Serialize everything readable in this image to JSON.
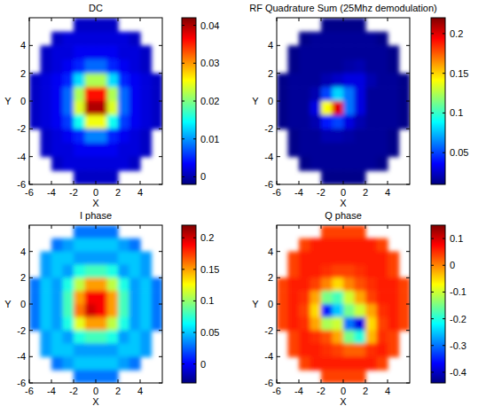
{
  "chart_data": [
    {
      "type": "heatmap",
      "title": "DC",
      "x_label": "X",
      "y_label": "Y",
      "xlim": [
        -6,
        6
      ],
      "ylim": [
        -6,
        6
      ],
      "xticks": [
        -6,
        -4,
        -2,
        0,
        2,
        4
      ],
      "yticks": [
        -6,
        -4,
        -2,
        0,
        2,
        4
      ],
      "x": [
        -5.5,
        -4.5,
        -3.5,
        -2.5,
        -1.5,
        -0.5,
        0.5,
        1.5,
        2.5,
        3.5,
        4.5,
        5.5
      ],
      "y": [
        5.5,
        4.5,
        3.5,
        2.5,
        1.5,
        0.5,
        -0.5,
        -1.5,
        -2.5,
        -3.5,
        -4.5,
        -5.5
      ],
      "values": [
        [
          null,
          null,
          null,
          null,
          0.001,
          0.001,
          0.001,
          0.001,
          null,
          null,
          null,
          null
        ],
        [
          null,
          null,
          0.001,
          0.002,
          0.002,
          0.002,
          0.002,
          0.002,
          0.002,
          0.001,
          null,
          null
        ],
        [
          null,
          0.001,
          0.002,
          0.002,
          0.003,
          0.003,
          0.003,
          0.003,
          0.002,
          0.002,
          0.001,
          null
        ],
        [
          null,
          0.001,
          0.002,
          0.003,
          0.005,
          0.008,
          0.008,
          0.005,
          0.003,
          0.002,
          0.001,
          null
        ],
        [
          0.001,
          0.002,
          0.003,
          0.005,
          0.013,
          0.022,
          0.022,
          0.013,
          0.005,
          0.003,
          0.002,
          0.001
        ],
        [
          0.001,
          0.002,
          0.003,
          0.008,
          0.022,
          0.036,
          0.036,
          0.022,
          0.008,
          0.003,
          0.002,
          0.001
        ],
        [
          0.001,
          0.002,
          0.003,
          0.008,
          0.024,
          0.04,
          0.04,
          0.024,
          0.008,
          0.003,
          0.002,
          0.001
        ],
        [
          0.001,
          0.002,
          0.003,
          0.006,
          0.015,
          0.025,
          0.025,
          0.015,
          0.006,
          0.003,
          0.002,
          0.001
        ],
        [
          null,
          0.001,
          0.002,
          0.003,
          0.005,
          0.009,
          0.009,
          0.005,
          0.003,
          0.002,
          0.001,
          null
        ],
        [
          null,
          0.001,
          0.002,
          0.002,
          0.003,
          0.003,
          0.003,
          0.003,
          0.002,
          0.002,
          0.001,
          null
        ],
        [
          null,
          null,
          0.001,
          0.002,
          0.002,
          0.002,
          0.002,
          0.002,
          0.002,
          0.001,
          null,
          null
        ],
        [
          null,
          null,
          null,
          null,
          0.001,
          0.001,
          0.001,
          0.001,
          null,
          null,
          null,
          null
        ]
      ],
      "color_range": [
        -0.002,
        0.042
      ],
      "color_ticks": [
        0,
        0.01,
        0.02,
        0.03,
        0.04
      ]
    },
    {
      "type": "heatmap",
      "title": "RF Quadrature Sum (25Mhz demodulation)",
      "x_label": "X",
      "y_label": "Y",
      "xlim": [
        -6,
        6
      ],
      "ylim": [
        -6,
        6
      ],
      "xticks": [
        -6,
        -4,
        -2,
        0,
        2,
        4
      ],
      "yticks": [
        -6,
        -4,
        -2,
        0,
        2,
        4
      ],
      "x": [
        -5.5,
        -4.5,
        -3.5,
        -2.5,
        -1.5,
        -0.5,
        0.5,
        1.5,
        2.5,
        3.5,
        4.5,
        5.5
      ],
      "y": [
        5.5,
        4.5,
        3.5,
        2.5,
        1.5,
        0.5,
        -0.5,
        -1.5,
        -2.5,
        -3.5,
        -4.5,
        -5.5
      ],
      "values": [
        [
          null,
          null,
          null,
          null,
          0.012,
          0.012,
          0.012,
          0.012,
          null,
          null,
          null,
          null
        ],
        [
          null,
          null,
          0.012,
          0.015,
          0.015,
          0.015,
          0.015,
          0.015,
          0.015,
          0.012,
          null,
          null
        ],
        [
          null,
          0.012,
          0.015,
          0.015,
          0.015,
          0.015,
          0.015,
          0.015,
          0.015,
          0.015,
          0.012,
          null
        ],
        [
          null,
          0.012,
          0.015,
          0.015,
          0.015,
          0.015,
          0.018,
          0.02,
          0.015,
          0.015,
          0.012,
          null
        ],
        [
          0.012,
          0.015,
          0.015,
          0.015,
          0.02,
          0.025,
          0.03,
          0.03,
          0.02,
          0.015,
          0.015,
          0.012
        ],
        [
          0.012,
          0.015,
          0.015,
          0.02,
          0.05,
          0.08,
          0.06,
          0.03,
          0.015,
          0.015,
          0.015,
          0.012
        ],
        [
          0.012,
          0.015,
          0.015,
          0.03,
          0.14,
          0.2,
          0.06,
          0.03,
          0.015,
          0.015,
          0.015,
          0.012
        ],
        [
          0.012,
          0.015,
          0.015,
          0.02,
          0.04,
          0.05,
          0.03,
          0.02,
          0.015,
          0.015,
          0.015,
          0.012
        ],
        [
          null,
          0.012,
          0.015,
          0.015,
          0.02,
          0.02,
          0.018,
          0.015,
          0.015,
          0.015,
          0.012,
          null
        ],
        [
          null,
          0.012,
          0.015,
          0.015,
          0.015,
          0.015,
          0.015,
          0.015,
          0.015,
          0.015,
          0.012,
          null
        ],
        [
          null,
          null,
          0.012,
          0.015,
          0.015,
          0.015,
          0.015,
          0.015,
          0.015,
          0.012,
          null,
          null
        ],
        [
          null,
          null,
          null,
          null,
          0.012,
          0.012,
          0.012,
          0.012,
          null,
          null,
          null,
          null
        ]
      ],
      "color_range": [
        0.01,
        0.22
      ],
      "color_ticks": [
        0.05,
        0.1,
        0.15,
        0.2
      ]
    },
    {
      "type": "heatmap",
      "title": "I phase",
      "x_label": "X",
      "y_label": "Y",
      "xlim": [
        -6,
        6
      ],
      "ylim": [
        -6,
        6
      ],
      "xticks": [
        -6,
        -4,
        -2,
        0,
        2,
        4
      ],
      "yticks": [
        -6,
        -4,
        -2,
        0,
        2,
        4
      ],
      "x": [
        -5.5,
        -4.5,
        -3.5,
        -2.5,
        -1.5,
        -0.5,
        0.5,
        1.5,
        2.5,
        3.5,
        4.5,
        5.5
      ],
      "y": [
        5.5,
        4.5,
        3.5,
        2.5,
        1.5,
        0.5,
        -0.5,
        -1.5,
        -2.5,
        -3.5,
        -4.5,
        -5.5
      ],
      "values": [
        [
          null,
          null,
          null,
          null,
          0.03,
          0.03,
          0.03,
          0.03,
          null,
          null,
          null,
          null
        ],
        [
          null,
          null,
          0.03,
          0.04,
          0.05,
          0.05,
          0.05,
          0.05,
          0.04,
          0.03,
          null,
          null
        ],
        [
          null,
          0.04,
          0.05,
          0.05,
          0.04,
          0.04,
          0.04,
          0.04,
          0.05,
          0.05,
          0.04,
          null
        ],
        [
          null,
          0.04,
          0.05,
          0.04,
          0.07,
          0.08,
          0.08,
          0.07,
          0.04,
          0.05,
          0.04,
          null
        ],
        [
          0.03,
          0.05,
          0.04,
          0.07,
          0.11,
          0.15,
          0.15,
          0.11,
          0.07,
          0.04,
          0.05,
          0.03
        ],
        [
          0.03,
          0.05,
          0.04,
          0.08,
          0.15,
          0.19,
          0.19,
          0.15,
          0.08,
          0.04,
          0.05,
          0.03
        ],
        [
          0.03,
          0.05,
          0.04,
          0.08,
          0.16,
          0.2,
          0.19,
          0.15,
          0.08,
          0.04,
          0.05,
          0.03
        ],
        [
          0.03,
          0.05,
          0.04,
          0.07,
          0.12,
          0.15,
          0.15,
          0.11,
          0.07,
          0.04,
          0.05,
          0.03
        ],
        [
          null,
          0.04,
          0.05,
          0.04,
          0.07,
          0.08,
          0.08,
          0.07,
          0.04,
          0.05,
          0.04,
          null
        ],
        [
          null,
          0.04,
          0.05,
          0.05,
          0.04,
          0.04,
          0.04,
          0.04,
          0.05,
          0.05,
          0.04,
          null
        ],
        [
          null,
          null,
          0.03,
          0.04,
          0.05,
          0.05,
          0.05,
          0.05,
          0.04,
          0.03,
          null,
          null
        ],
        [
          null,
          null,
          null,
          null,
          0.03,
          0.03,
          0.03,
          0.03,
          null,
          null,
          null,
          null
        ]
      ],
      "color_range": [
        -0.03,
        0.22
      ],
      "color_ticks": [
        0,
        0.05,
        0.1,
        0.15,
        0.2
      ]
    },
    {
      "type": "heatmap",
      "title": "Q phase",
      "x_label": "X",
      "y_label": "Y",
      "xlim": [
        -6,
        6
      ],
      "ylim": [
        -6,
        6
      ],
      "xticks": [
        -6,
        -4,
        -2,
        0,
        2,
        4
      ],
      "yticks": [
        -6,
        -4,
        -2,
        0,
        2,
        4
      ],
      "x": [
        -5.5,
        -4.5,
        -3.5,
        -2.5,
        -1.5,
        -0.5,
        0.5,
        1.5,
        2.5,
        3.5,
        4.5,
        5.5
      ],
      "y": [
        5.5,
        4.5,
        3.5,
        2.5,
        1.5,
        0.5,
        -0.5,
        -1.5,
        -2.5,
        -3.5,
        -4.5,
        -5.5
      ],
      "values": [
        [
          null,
          null,
          null,
          null,
          0.04,
          0.04,
          0.04,
          0.04,
          null,
          null,
          null,
          null
        ],
        [
          null,
          null,
          0.04,
          0.06,
          0.06,
          0.06,
          0.06,
          0.06,
          0.06,
          0.04,
          null,
          null
        ],
        [
          null,
          0.04,
          0.06,
          0.06,
          0.06,
          0.06,
          0.06,
          0.06,
          0.06,
          0.06,
          0.04,
          null
        ],
        [
          null,
          0.04,
          0.06,
          0.06,
          0.05,
          0.04,
          0.04,
          0.05,
          0.06,
          0.06,
          0.04,
          null
        ],
        [
          0.04,
          0.06,
          0.06,
          0.04,
          0,
          -0.05,
          0,
          0.03,
          0.05,
          0.06,
          0.06,
          0.04
        ],
        [
          0.04,
          0.06,
          0.05,
          -0.02,
          -0.15,
          -0.18,
          -0.1,
          -0.02,
          0.04,
          0.06,
          0.06,
          0.04
        ],
        [
          0.04,
          0.06,
          0.04,
          -0.05,
          -0.35,
          -0.25,
          -0.15,
          -0.1,
          -0.02,
          0.05,
          0.06,
          0.04
        ],
        [
          0.04,
          0.06,
          0.05,
          -0.02,
          -0.12,
          -0.1,
          -0.3,
          -0.38,
          -0.05,
          0.04,
          0.06,
          0.04
        ],
        [
          null,
          0.04,
          0.06,
          0.05,
          0.03,
          -0.02,
          -0.15,
          -0.2,
          -0.03,
          0.05,
          0.04,
          null
        ],
        [
          null,
          0.04,
          0.06,
          0.06,
          0.05,
          0.04,
          0.02,
          0.02,
          0.05,
          0.06,
          0.04,
          null
        ],
        [
          null,
          null,
          0.04,
          0.06,
          0.06,
          0.06,
          0.06,
          0.06,
          0.06,
          0.04,
          null,
          null
        ],
        [
          null,
          null,
          null,
          null,
          0.04,
          0.04,
          0.04,
          0.04,
          null,
          null,
          null,
          null
        ]
      ],
      "color_range": [
        -0.44,
        0.15
      ],
      "color_ticks": [
        -0.4,
        -0.3,
        -0.2,
        -0.1,
        0,
        0.1
      ]
    }
  ]
}
